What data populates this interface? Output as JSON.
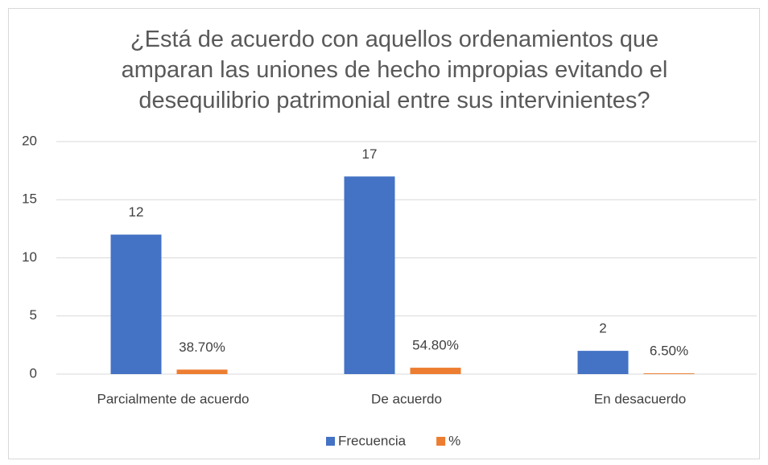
{
  "chart_data": {
    "type": "bar",
    "title": "¿Está de acuerdo con aquellos ordenamientos que amparan las uniones de hecho impropias evitando el desequilibrio patrimonial entre sus intervinientes?",
    "categories": [
      "Parcialmente de acuerdo",
      "De acuerdo",
      "En desacuerdo"
    ],
    "series": [
      {
        "name": "Frecuencia",
        "color": "#4472c4",
        "values": [
          12,
          17,
          2
        ]
      },
      {
        "name": "%",
        "color": "#ed7d31",
        "values": [
          0.387,
          0.548,
          0.065
        ],
        "value_labels": [
          "38.70%",
          "54.80%",
          "6.50%"
        ]
      }
    ],
    "ylim": [
      0,
      20
    ],
    "yticks": [
      0,
      5,
      10,
      15,
      20
    ],
    "grid": true,
    "legend": "bottom"
  }
}
